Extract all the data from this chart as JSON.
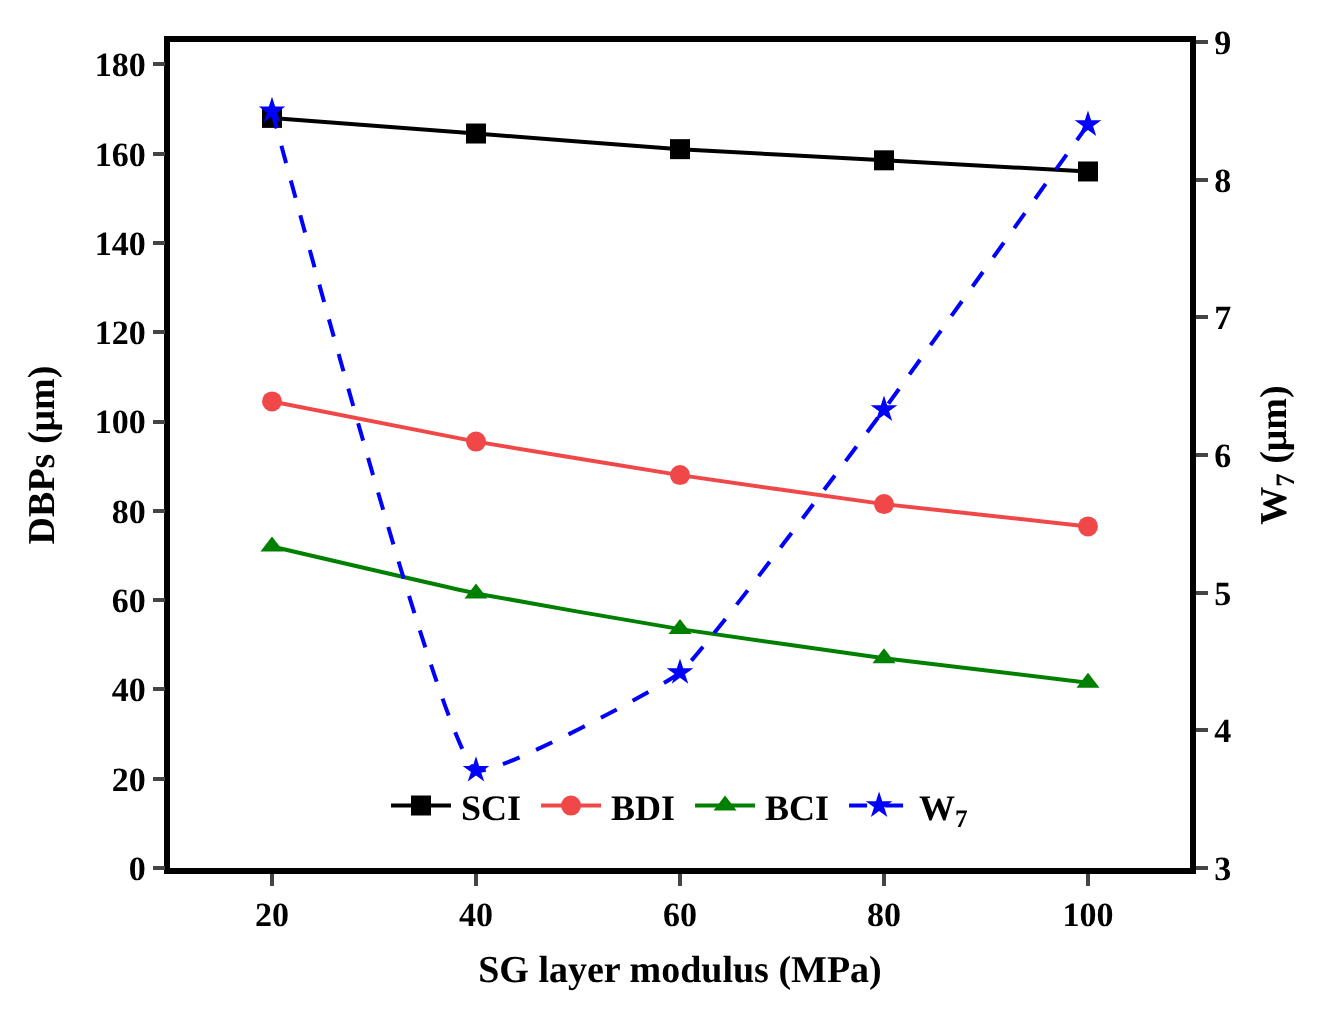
{
  "chart_data": {
    "type": "line",
    "xlabel": "SG layer modulus (MPa)",
    "ylabel": "DBPs (μm)",
    "y2label": "W$_{7}$ (μm)",
    "x": [
      20,
      40,
      60,
      80,
      100
    ],
    "xlim": [
      10,
      110
    ],
    "xticks": [
      20,
      40,
      60,
      80,
      100
    ],
    "ylim": [
      0,
      185
    ],
    "yticks": [
      0,
      20,
      40,
      60,
      80,
      100,
      120,
      140,
      160,
      180
    ],
    "y2lim": [
      3,
      9
    ],
    "y2ticks": [
      3,
      4,
      5,
      6,
      7,
      8,
      9
    ],
    "legend": "bottom",
    "series": [
      {
        "name": "SCI",
        "color": "#000000",
        "marker": "square",
        "line_style": "solid",
        "values": [
          168,
          164.5,
          161,
          158.5,
          156
        ]
      },
      {
        "name": "BDI",
        "color": "#f04848",
        "marker": "circle",
        "line_style": "solid",
        "values": [
          104.5,
          95.5,
          88,
          81.5,
          76.5
        ]
      },
      {
        "name": "BCI",
        "color": "#008000",
        "marker": "triangle",
        "line_style": "solid",
        "values": [
          72,
          61.5,
          53.5,
          47,
          41.5
        ]
      },
      {
        "name": "W$_{7}$",
        "color": "#0000ff",
        "marker": "star",
        "line_style": "dashed",
        "axis": "y2",
        "values": [
          8.5,
          3.71,
          4.42,
          6.33,
          8.4
        ]
      }
    ]
  }
}
